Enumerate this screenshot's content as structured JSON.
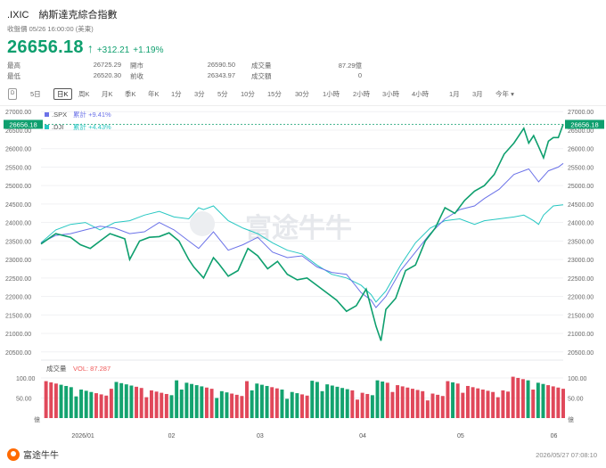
{
  "header": {
    "symbol": ".IXIC",
    "name": "納斯達克綜合指數",
    "status": "收盤價 05/26 16:00:00 (美東)",
    "price": "26656.18",
    "arrow": "↑",
    "change": "+312.21",
    "change_pct": "+1.19%"
  },
  "stats": {
    "high_label": "最高",
    "high": "26725.29",
    "low_label": "最低",
    "low": "26520.30",
    "open_label": "開市",
    "open": "26590.50",
    "prev_label": "前收",
    "prev": "26343.97",
    "vol_label": "成交量",
    "vol": "87.29億",
    "amt_label": "成交額",
    "amt": "0"
  },
  "tabs": [
    "5日",
    "日K",
    "周K",
    "月K",
    "季K",
    "年K",
    "1分",
    "3分",
    "5分",
    "10分",
    "15分",
    "30分",
    "1小時",
    "2小時",
    "3小時",
    "4小時",
    "1月",
    "3月",
    "今年"
  ],
  "tab_icon": "D",
  "tab_dropdown_arrow": "▾",
  "active_tab": "日K",
  "legend": {
    "spx_name": ".SPX",
    "spx_text": "累計 +9.41%",
    "dji_name": ".DJI",
    "dji_text": "累計 +4.43%"
  },
  "volume_label": "成交量",
  "volume_value": "VOL: 87.287",
  "watermark": "富途牛牛",
  "current_price_tag": "26656.18",
  "colors": {
    "ixic": "#0e9f6e",
    "spx": "#6b72e8",
    "dji": "#27c7c2",
    "up": "#e0485a",
    "down": "#13a36f",
    "accent_red": "#f05a5a"
  },
  "footer": {
    "brand": "富途牛牛",
    "timestamp": "2026/05/27 07:08:10"
  },
  "chart_data": {
    "type": "line",
    "y_ticks": [
      "27000.00",
      "26500.00",
      "26000.00",
      "25500.00",
      "25000.00",
      "24500.00",
      "24000.00",
      "23500.00",
      "23000.00",
      "22500.00",
      "22000.00",
      "21500.00",
      "21000.00",
      "20500.00"
    ],
    "ylim": [
      20350,
      27150
    ],
    "x_ticks": [
      {
        "label": "2026/01",
        "index": 9
      },
      {
        "label": "02",
        "index": 28
      },
      {
        "label": "03",
        "index": 47
      },
      {
        "label": "04",
        "index": 69
      },
      {
        "label": "05",
        "index": 90
      },
      {
        "label": "06",
        "index": 110
      }
    ],
    "n_points": 104,
    "series": [
      {
        "name": ".IXIC",
        "anchors": [
          [
            0,
            23420
          ],
          [
            3,
            23700
          ],
          [
            6,
            23600
          ],
          [
            8,
            23400
          ],
          [
            10,
            23300
          ],
          [
            12,
            23500
          ],
          [
            14,
            23700
          ],
          [
            17,
            23560
          ],
          [
            18,
            23000
          ],
          [
            20,
            23500
          ],
          [
            22,
            23600
          ],
          [
            24,
            23620
          ],
          [
            26,
            23720
          ],
          [
            28,
            23500
          ],
          [
            30,
            23000
          ],
          [
            31,
            22800
          ],
          [
            33,
            22500
          ],
          [
            35,
            23050
          ],
          [
            36,
            22900
          ],
          [
            38,
            22550
          ],
          [
            40,
            22700
          ],
          [
            42,
            23300
          ],
          [
            44,
            23100
          ],
          [
            46,
            22750
          ],
          [
            48,
            22950
          ],
          [
            50,
            22600
          ],
          [
            52,
            22450
          ],
          [
            54,
            22500
          ],
          [
            56,
            22300
          ],
          [
            58,
            22100
          ],
          [
            60,
            21900
          ],
          [
            62,
            21600
          ],
          [
            64,
            21750
          ],
          [
            66,
            22200
          ],
          [
            68,
            21200
          ],
          [
            69,
            20800
          ],
          [
            70,
            21650
          ],
          [
            72,
            21950
          ],
          [
            74,
            22700
          ],
          [
            76,
            22850
          ],
          [
            78,
            23500
          ],
          [
            80,
            23850
          ],
          [
            82,
            24400
          ],
          [
            84,
            24250
          ],
          [
            86,
            24600
          ],
          [
            88,
            24850
          ],
          [
            90,
            25000
          ],
          [
            92,
            25300
          ],
          [
            94,
            25850
          ],
          [
            96,
            26150
          ],
          [
            98,
            26550
          ],
          [
            99,
            26150
          ],
          [
            100,
            26350
          ],
          [
            101,
            26050
          ],
          [
            102,
            25750
          ],
          [
            103,
            26200
          ],
          [
            104,
            26300
          ],
          [
            105,
            26300
          ],
          [
            106,
            26657
          ]
        ]
      },
      {
        "name": ".SPX",
        "anchors": [
          [
            0,
            23450
          ],
          [
            3,
            23650
          ],
          [
            6,
            23700
          ],
          [
            9,
            23800
          ],
          [
            12,
            23900
          ],
          [
            15,
            23850
          ],
          [
            18,
            23700
          ],
          [
            21,
            23750
          ],
          [
            24,
            24000
          ],
          [
            27,
            23800
          ],
          [
            30,
            23500
          ],
          [
            32,
            23300
          ],
          [
            35,
            23750
          ],
          [
            38,
            23250
          ],
          [
            41,
            23400
          ],
          [
            44,
            23600
          ],
          [
            47,
            23200
          ],
          [
            50,
            23050
          ],
          [
            53,
            23100
          ],
          [
            56,
            22800
          ],
          [
            59,
            22650
          ],
          [
            62,
            22600
          ],
          [
            65,
            22100
          ],
          [
            67,
            21900
          ],
          [
            68,
            21700
          ],
          [
            70,
            22000
          ],
          [
            73,
            22700
          ],
          [
            76,
            23200
          ],
          [
            79,
            23700
          ],
          [
            82,
            24100
          ],
          [
            85,
            24350
          ],
          [
            88,
            24450
          ],
          [
            90,
            24650
          ],
          [
            93,
            24900
          ],
          [
            96,
            25300
          ],
          [
            99,
            25450
          ],
          [
            101,
            25100
          ],
          [
            103,
            25400
          ],
          [
            105,
            25500
          ],
          [
            106,
            25600
          ]
        ]
      },
      {
        "name": ".DJI",
        "anchors": [
          [
            0,
            23450
          ],
          [
            3,
            23800
          ],
          [
            6,
            23950
          ],
          [
            9,
            24000
          ],
          [
            12,
            23800
          ],
          [
            15,
            24000
          ],
          [
            18,
            24050
          ],
          [
            21,
            24200
          ],
          [
            24,
            24300
          ],
          [
            27,
            24150
          ],
          [
            30,
            24100
          ],
          [
            32,
            24400
          ],
          [
            33,
            24350
          ],
          [
            35,
            24450
          ],
          [
            38,
            24050
          ],
          [
            41,
            23850
          ],
          [
            44,
            23700
          ],
          [
            47,
            23450
          ],
          [
            50,
            23250
          ],
          [
            53,
            23150
          ],
          [
            56,
            22850
          ],
          [
            59,
            22600
          ],
          [
            62,
            22500
          ],
          [
            65,
            22300
          ],
          [
            67,
            22050
          ],
          [
            68,
            21850
          ],
          [
            70,
            22150
          ],
          [
            73,
            22850
          ],
          [
            76,
            23450
          ],
          [
            79,
            23850
          ],
          [
            82,
            24050
          ],
          [
            85,
            24100
          ],
          [
            88,
            23950
          ],
          [
            90,
            24050
          ],
          [
            93,
            24100
          ],
          [
            96,
            24150
          ],
          [
            98,
            24200
          ],
          [
            100,
            24050
          ],
          [
            101,
            23950
          ],
          [
            102,
            24200
          ],
          [
            104,
            24450
          ],
          [
            106,
            24480
          ]
        ]
      }
    ],
    "volume": {
      "y_ticks": [
        "100.00",
        "50.00",
        "億"
      ],
      "ylim": [
        0,
        120
      ]
    }
  }
}
